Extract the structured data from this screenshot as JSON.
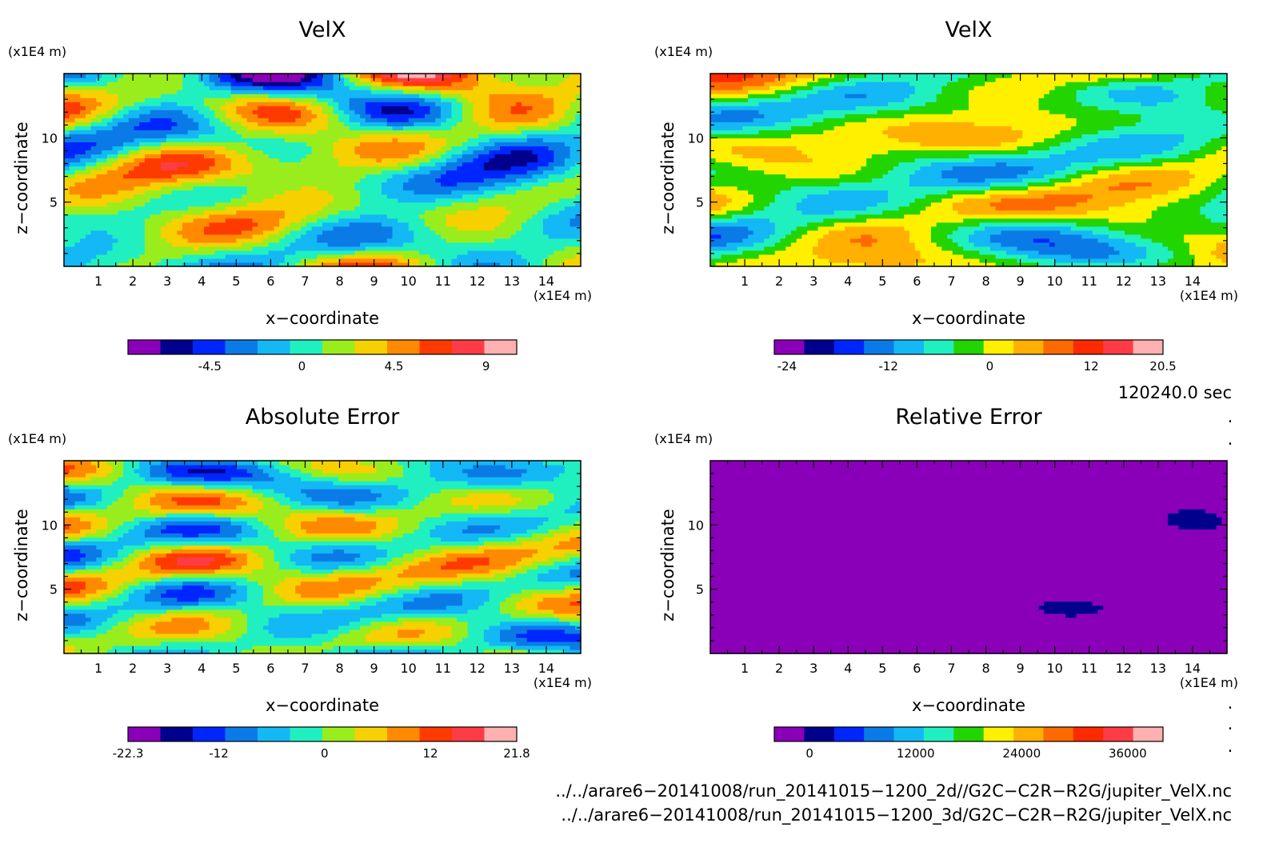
{
  "chart_data": [
    {
      "type": "heatmap",
      "title": "VelX",
      "xlabel": "x−coordinate",
      "ylabel": "z−coordinate",
      "x_unit": "(x1E4 m)",
      "y_unit": "(x1E4 m)",
      "x_ticks": [
        "1",
        "2",
        "3",
        "4",
        "5",
        "6",
        "7",
        "8",
        "9",
        "10",
        "11",
        "12",
        "13",
        "14"
      ],
      "y_ticks": [
        "5",
        "10"
      ],
      "xlim": [
        0,
        15
      ],
      "ylim": [
        0,
        15
      ],
      "colorbar": {
        "ticks": [
          "-4.5",
          "0",
          "4.5",
          "9"
        ],
        "tick_values": [
          -4.5,
          0,
          4.5,
          9
        ],
        "range": [
          -8.5,
          10.5
        ],
        "colors": [
          "#8a00b8",
          "#00008c",
          "#0026ff",
          "#0a7be6",
          "#13b8f5",
          "#20f0c0",
          "#9aed1c",
          "#f7d000",
          "#ff8a00",
          "#ff3a00",
          "#ff3c46",
          "#ffb0b0"
        ]
      }
    },
    {
      "type": "heatmap",
      "title": "VelX",
      "xlabel": "x−coordinate",
      "ylabel": "z−coordinate",
      "x_unit": "(x1E4 m)",
      "y_unit": "(x1E4 m)",
      "x_ticks": [
        "1",
        "2",
        "3",
        "4",
        "5",
        "6",
        "7",
        "8",
        "9",
        "10",
        "11",
        "12",
        "13",
        "14"
      ],
      "y_ticks": [
        "5",
        "10"
      ],
      "xlim": [
        0,
        15
      ],
      "ylim": [
        0,
        15
      ],
      "colorbar": {
        "ticks": [
          "-24",
          "-12",
          "0",
          "12",
          "20.5"
        ],
        "tick_values": [
          -24,
          -12,
          0,
          12,
          20.5
        ],
        "range": [
          -25.5,
          20.5
        ],
        "colors": [
          "#8a00b8",
          "#00008c",
          "#0026ff",
          "#0a7be6",
          "#13b8f5",
          "#20f0c0",
          "#22d400",
          "#fff000",
          "#ffb000",
          "#ff6a00",
          "#ff2a00",
          "#ff3c46",
          "#ffb0b0"
        ]
      }
    },
    {
      "type": "heatmap",
      "title": "Absolute Error",
      "xlabel": "x−coordinate",
      "ylabel": "z−coordinate",
      "x_unit": "(x1E4 m)",
      "y_unit": "(x1E4 m)",
      "x_ticks": [
        "1",
        "2",
        "3",
        "4",
        "5",
        "6",
        "7",
        "8",
        "9",
        "10",
        "11",
        "12",
        "13",
        "14"
      ],
      "y_ticks": [
        "5",
        "10"
      ],
      "xlim": [
        0,
        15
      ],
      "ylim": [
        0,
        15
      ],
      "colorbar": {
        "ticks": [
          "-22.3",
          "-12",
          "0",
          "12",
          "21.8"
        ],
        "tick_values": [
          -22.3,
          -12,
          0,
          12,
          21.8
        ],
        "range": [
          -22.3,
          21.8
        ],
        "colors": [
          "#8a00b8",
          "#00008c",
          "#0026ff",
          "#0a7be6",
          "#13b8f5",
          "#20f0c0",
          "#9aed1c",
          "#f7d000",
          "#ff8a00",
          "#ff3a00",
          "#ff3c46",
          "#ffb0b0"
        ]
      }
    },
    {
      "type": "heatmap",
      "title": "Relative Error",
      "xlabel": "x−coordinate",
      "ylabel": "z−coordinate",
      "x_unit": "(x1E4 m)",
      "y_unit": "(x1E4 m)",
      "x_ticks": [
        "1",
        "2",
        "3",
        "4",
        "5",
        "6",
        "7",
        "8",
        "9",
        "10",
        "11",
        "12",
        "13",
        "14"
      ],
      "y_ticks": [
        "5",
        "10"
      ],
      "xlim": [
        0,
        15
      ],
      "ylim": [
        0,
        15
      ],
      "colorbar": {
        "ticks": [
          "0",
          "12000",
          "24000",
          "36000"
        ],
        "tick_values": [
          0,
          12000,
          24000,
          36000
        ],
        "range": [
          -4000,
          40000
        ],
        "colors": [
          "#8a00b8",
          "#00008c",
          "#0026ff",
          "#0a7be6",
          "#13b8f5",
          "#20f0c0",
          "#22d400",
          "#fff000",
          "#ffb000",
          "#ff6a00",
          "#ff2a00",
          "#ff3c46",
          "#ffb0b0"
        ]
      }
    }
  ],
  "info": {
    "time": "120240.0 sec",
    "file1": "../../arare6−20141008/run_20141015−1200_2d//G2C−C2R−R2G/jupiter_VelX.nc",
    "file2": "../../arare6−20141008/run_20141015−1200_3d/G2C−C2R−R2G/jupiter_VelX.nc"
  }
}
